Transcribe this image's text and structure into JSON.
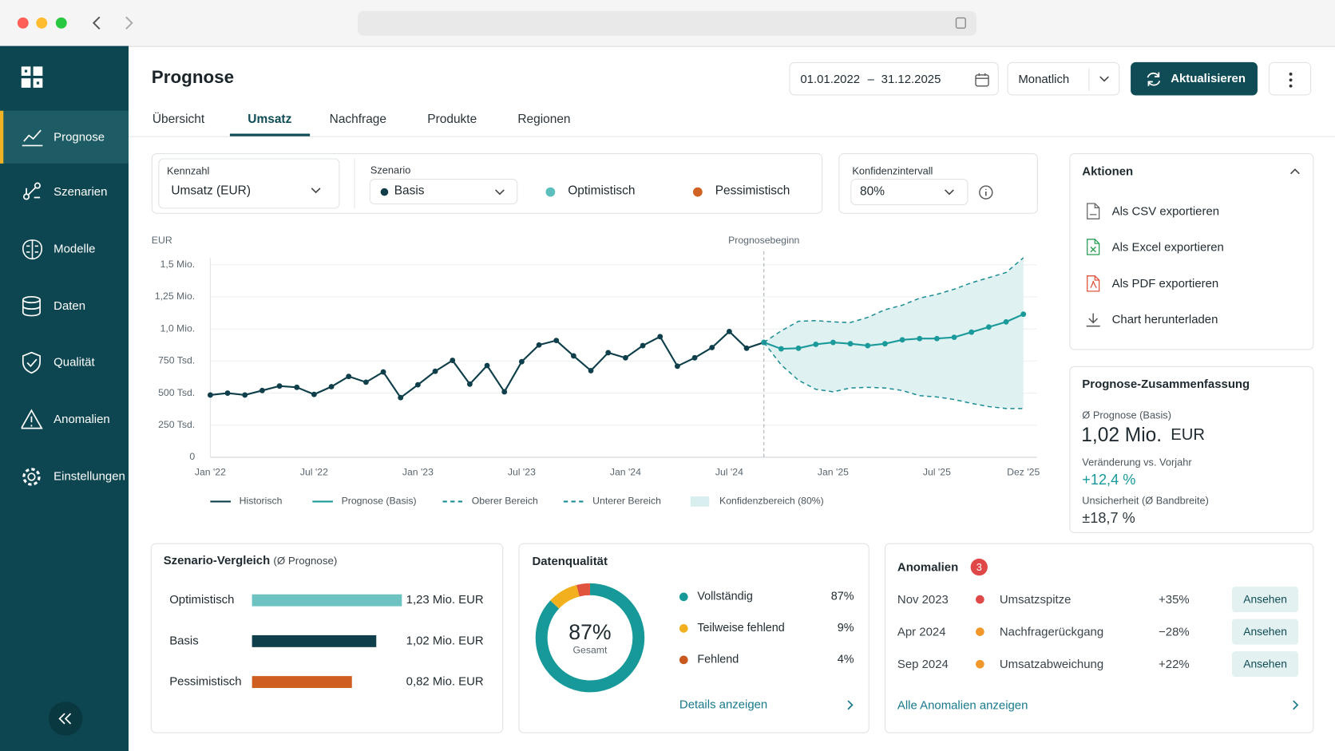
{
  "sidebar": {
    "items": [
      "Prognose",
      "Szenarien",
      "Modelle",
      "Daten",
      "Qualität",
      "Anomalien",
      "Einstellungen"
    ],
    "active": 0
  },
  "header": {
    "title": "Prognose",
    "date_from": "01.01.2022",
    "date_separator": "–",
    "date_to": "31.12.2025",
    "interval": "Monatlich",
    "refresh_button": "Aktualisieren"
  },
  "tabs": {
    "items": [
      "Übersicht",
      "Umsatz",
      "Nachfrage",
      "Produkte",
      "Regionen"
    ],
    "active": 1
  },
  "filters": {
    "metric": {
      "label": "Kennzahl",
      "value": "Umsatz (EUR)"
    },
    "scenario": {
      "label": "Szenario",
      "value": "Basis",
      "color": "#103d48"
    },
    "scenario_options": [
      {
        "name": "Optimistisch",
        "color": "#5dbfbd"
      },
      {
        "name": "Pessimistisch",
        "color": "#cf6224"
      }
    ],
    "confidence": {
      "label": "Konfidenzintervall",
      "value": "80%"
    }
  },
  "chart_data": [
    {
      "type": "line",
      "y_label": "EUR",
      "annotation": {
        "label": "Prognosebeginn",
        "index": 32
      },
      "categories": [
        "Jan '22",
        null,
        null,
        null,
        null,
        null,
        "Jul '22",
        null,
        null,
        null,
        null,
        null,
        "Jan '23",
        null,
        null,
        null,
        null,
        null,
        "Jul '23",
        null,
        null,
        null,
        null,
        null,
        "Jan '24",
        null,
        null,
        null,
        null,
        null,
        "Jul '24",
        null,
        null,
        null,
        null,
        null,
        "Jan '25",
        null,
        null,
        null,
        null,
        null,
        "Jul '25",
        null,
        null,
        null,
        null,
        "Dez '25"
      ],
      "series": [
        {
          "name": "Historisch",
          "color": "#0f3f4a",
          "dash": false,
          "values": [
            485000,
            500000,
            485000,
            520000,
            555000,
            545000,
            490000,
            550000,
            630000,
            585000,
            665000,
            465000,
            565000,
            670000,
            755000,
            570000,
            715000,
            510000,
            745000,
            875000,
            910000,
            790000,
            675000,
            815000,
            775000,
            870000,
            940000,
            710000,
            775000,
            855000,
            980000,
            850000,
            895000,
            null,
            null,
            null,
            null,
            null,
            null,
            null,
            null,
            null,
            null,
            null,
            null,
            null,
            null,
            null
          ]
        },
        {
          "name": "Prognose (Basis)",
          "color": "#1b9a9b",
          "dash": false,
          "values": [
            null,
            null,
            null,
            null,
            null,
            null,
            null,
            null,
            null,
            null,
            null,
            null,
            null,
            null,
            null,
            null,
            null,
            null,
            null,
            null,
            null,
            null,
            null,
            null,
            null,
            null,
            null,
            null,
            null,
            null,
            null,
            null,
            895000,
            845000,
            850000,
            880000,
            895000,
            885000,
            870000,
            885000,
            915000,
            925000,
            925000,
            935000,
            975000,
            1015000,
            1055000,
            1115000
          ]
        },
        {
          "name": "Oberer Bereich",
          "color": "#1b8c94",
          "dash": true,
          "values": [
            null,
            null,
            null,
            null,
            null,
            null,
            null,
            null,
            null,
            null,
            null,
            null,
            null,
            null,
            null,
            null,
            null,
            null,
            null,
            null,
            null,
            null,
            null,
            null,
            null,
            null,
            null,
            null,
            null,
            null,
            null,
            null,
            895000,
            985000,
            1060000,
            1065000,
            1055000,
            1050000,
            1090000,
            1150000,
            1185000,
            1240000,
            1270000,
            1310000,
            1360000,
            1400000,
            1440000,
            1555000
          ]
        },
        {
          "name": "Unterer Bereich",
          "color": "#1b8c94",
          "dash": true,
          "values": [
            null,
            null,
            null,
            null,
            null,
            null,
            null,
            null,
            null,
            null,
            null,
            null,
            null,
            null,
            null,
            null,
            null,
            null,
            null,
            null,
            null,
            null,
            null,
            null,
            null,
            null,
            null,
            null,
            null,
            null,
            null,
            null,
            895000,
            720000,
            600000,
            530000,
            510000,
            540000,
            545000,
            540000,
            520000,
            480000,
            470000,
            450000,
            420000,
            395000,
            380000,
            380000
          ]
        }
      ],
      "band": {
        "name": "Konfidenzbereich (80%)",
        "color": "#d9eeee"
      },
      "ylim": [
        0,
        1500000
      ],
      "yticks": [
        0,
        {
          "value": 250000,
          "label": "250 Tsd."
        },
        {
          "value": 500000,
          "label": "500 Tsd."
        },
        {
          "value": 750000,
          "label": "750 Tsd."
        },
        {
          "value": 1000000,
          "label": "1,0 Mio."
        },
        {
          "value": 1250000,
          "label": "1,25 Mio."
        },
        {
          "value": 1500000,
          "label": "1,5 Mio."
        }
      ],
      "grid": true
    },
    {
      "type": "bar",
      "title": "Szenario-Vergleich",
      "subtitle": "(Ø Prognose)",
      "categories": [
        "Optimistisch",
        "Basis",
        "Pessimistisch"
      ],
      "values": [
        1230000,
        1020000,
        820000
      ],
      "value_labels": [
        "1,23 Mio. EUR",
        "1,02 Mio. EUR",
        "0,82 Mio. EUR"
      ],
      "colors": [
        "#6cc3c1",
        "#0f3f4a",
        "#cf5f21"
      ]
    },
    {
      "type": "donut",
      "title": "Datenqualität",
      "categories": [
        "Vollständig",
        "Teilweise fehlend",
        "Fehlend"
      ],
      "values": [
        87,
        9,
        4
      ],
      "value_labels": [
        "87%",
        "9%",
        "4%"
      ],
      "colors": [
        "#17999a",
        "#f2b01e",
        "#e0533d"
      ],
      "legend_colors": [
        "#17999a",
        "#f2b01e",
        "#c8581e"
      ],
      "center_label": "Gesamt",
      "link": "Details anzeigen"
    }
  ],
  "actions": {
    "title": "Aktionen",
    "items": [
      "Als CSV exportieren",
      "Als Excel exportieren",
      "Als PDF exportieren",
      "Chart herunterladen"
    ]
  },
  "summary": {
    "title": "Prognose-Zusammenfassung",
    "forecast_label": "Ø Prognose (Basis)",
    "forecast_value": "1,02 Mio.",
    "forecast_unit": "EUR",
    "change_label": "Veränderung vs. Vorjahr",
    "change_value": "+12,4 %",
    "uncertainty_label": "Unsicherheit (Ø Bandbreite)",
    "uncertainty_value": "±18,7 %"
  },
  "anomalies": {
    "title": "Anomalien",
    "count": 3,
    "rows": [
      {
        "date": "Nov 2023",
        "type": "Umsatzspitze",
        "change": "+35%",
        "color": "#e04848"
      },
      {
        "date": "Apr 2024",
        "type": "Nachfragerückgang",
        "change": "−28%",
        "color": "#f2972a"
      },
      {
        "date": "Sep 2024",
        "type": "Umsatzabweichung",
        "change": "+22%",
        "color": "#f2972a"
      }
    ],
    "action": "Ansehen",
    "link": "Alle Anomalien anzeigen"
  }
}
